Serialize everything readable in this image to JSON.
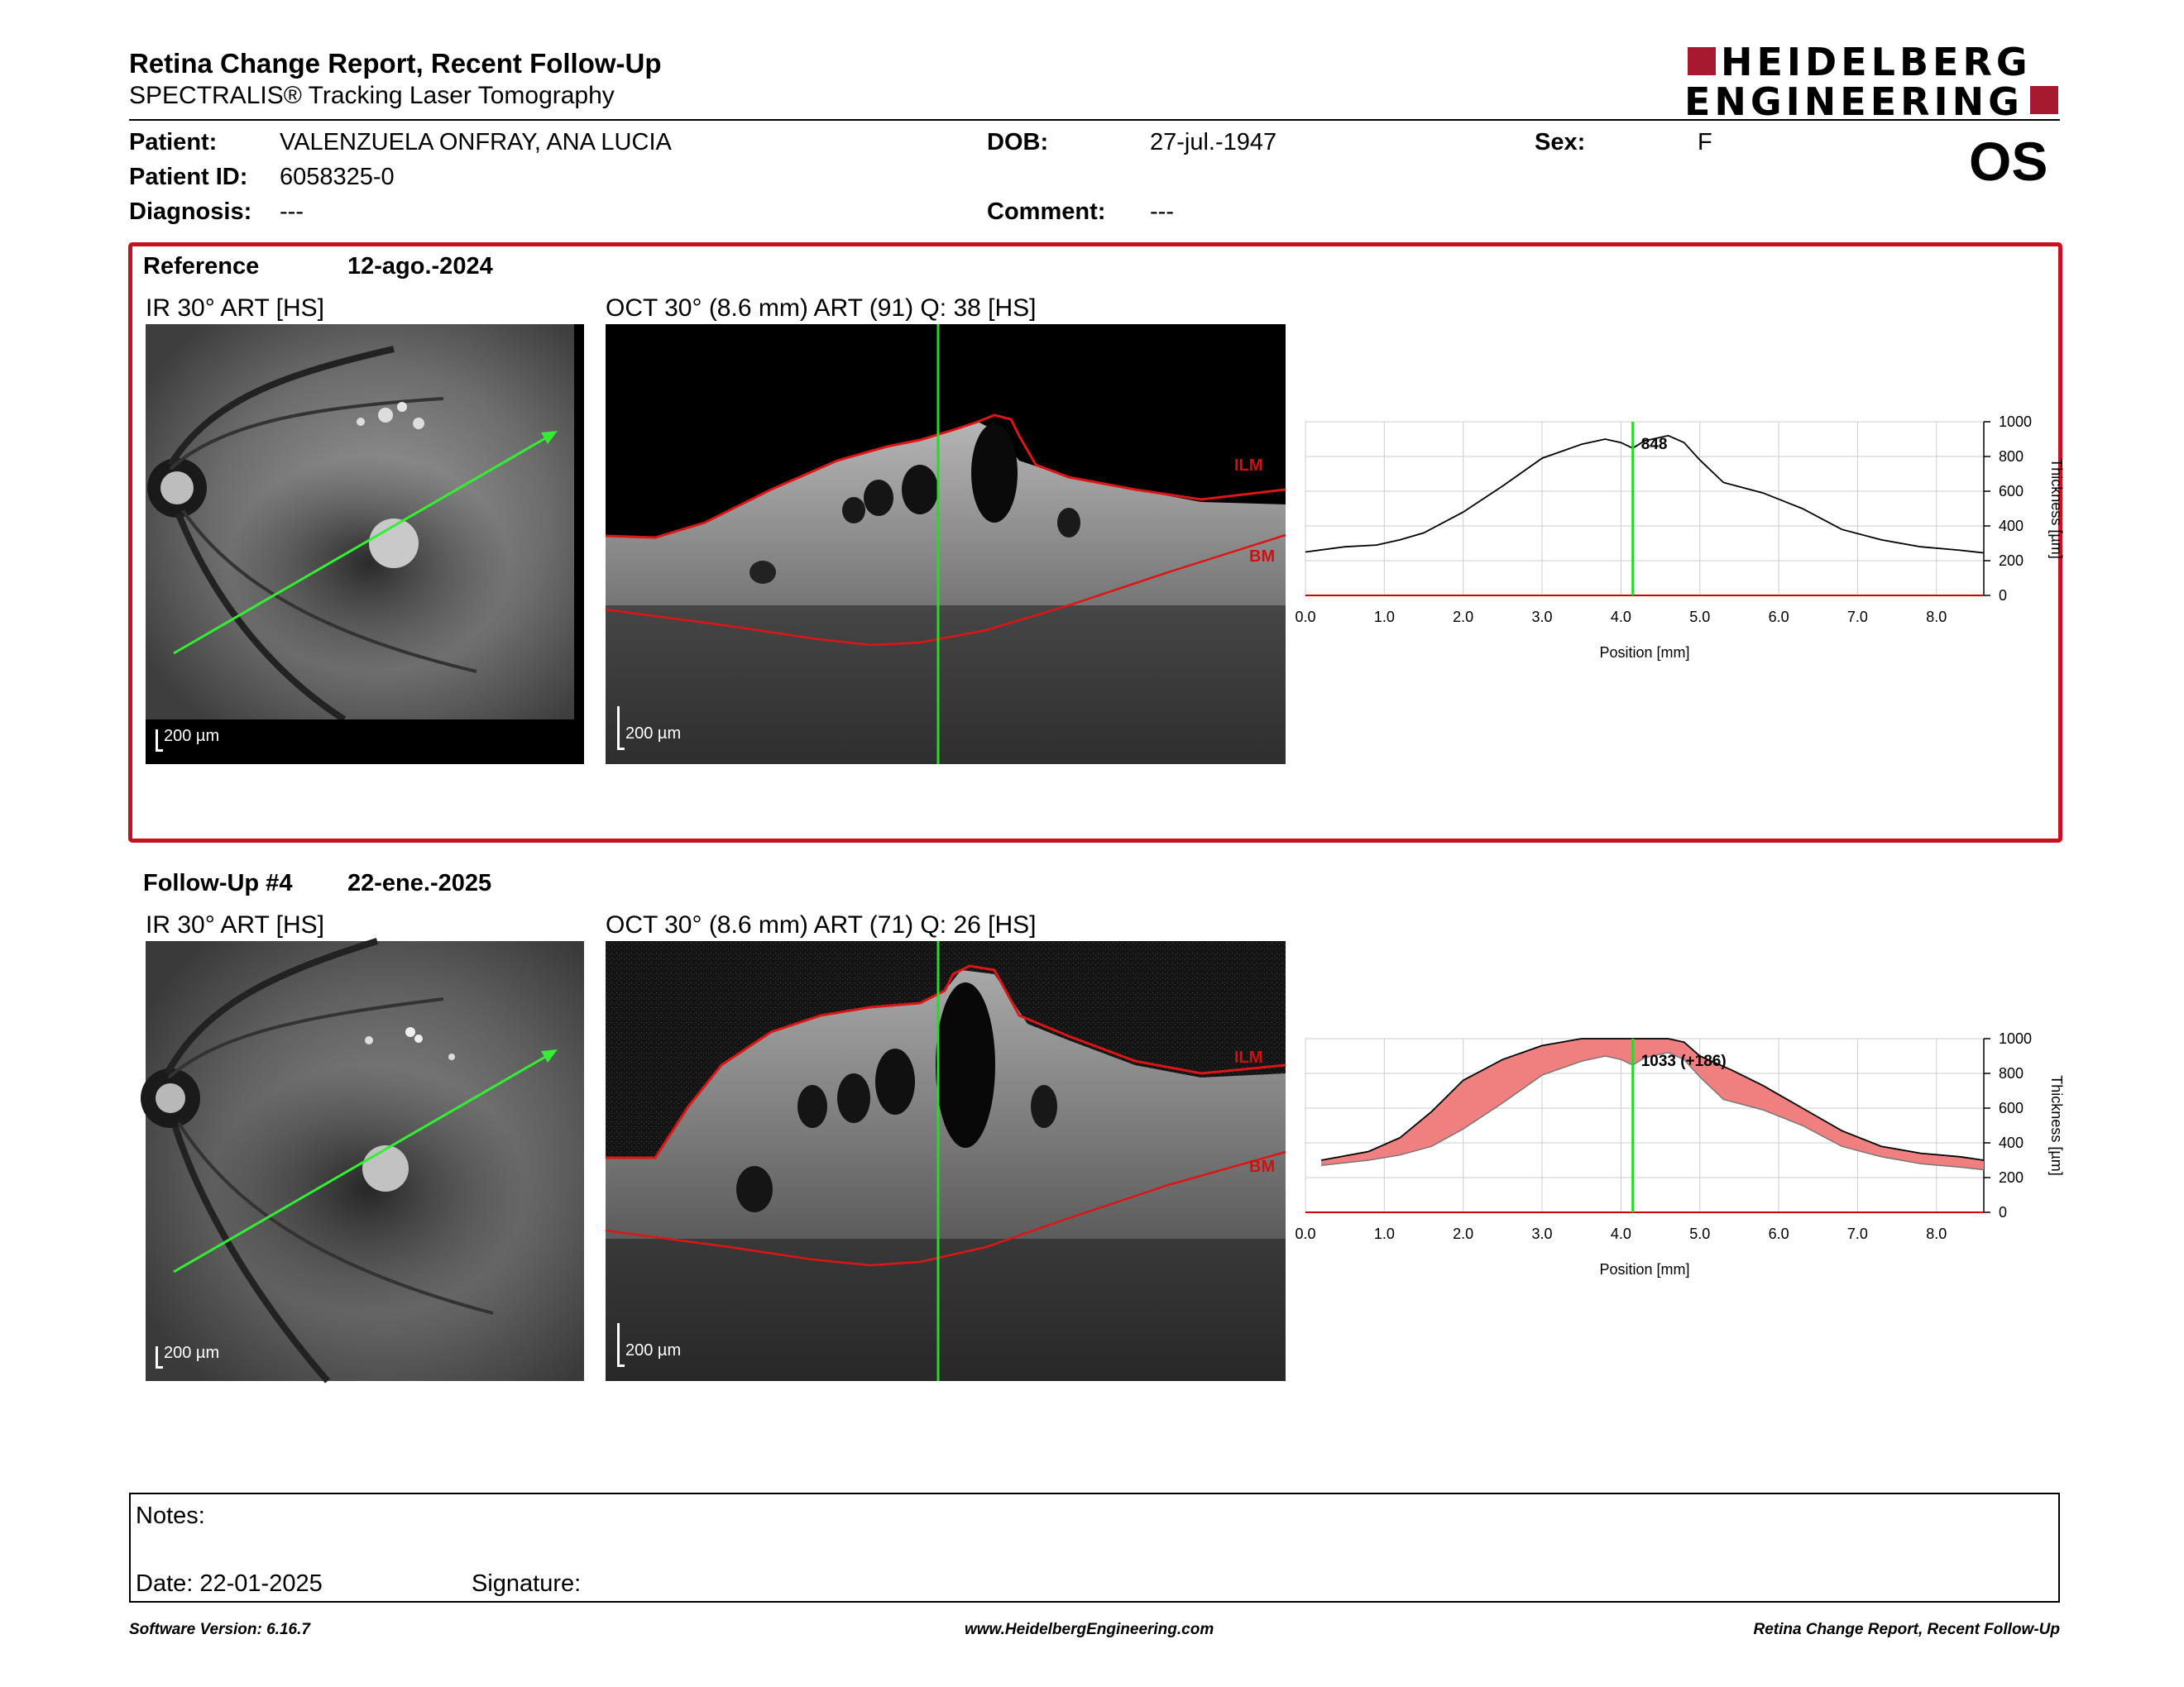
{
  "header": {
    "title": "Retina Change Report, Recent Follow-Up",
    "subtitle": "SPECTRALIS® Tracking Laser Tomography",
    "logo_line1": "HEIDELBERG",
    "logo_line2": "ENGINEERING",
    "eye": "OS"
  },
  "patient": {
    "name_label": "Patient:",
    "name": "VALENZUELA ONFRAY, ANA LUCIA",
    "id_label": "Patient ID:",
    "id": "6058325-0",
    "diagnosis_label": "Diagnosis:",
    "diagnosis": "---",
    "dob_label": "DOB:",
    "dob": "27-jul.-1947",
    "comment_label": "Comment:",
    "comment": "---",
    "sex_label": "Sex:",
    "sex": "F"
  },
  "reference": {
    "label": "Reference",
    "date": "12-ago.-2024",
    "ir_title": "IR 30° ART [HS]",
    "oct_title": "OCT 30° (8.6 mm) ART (91) Q: 38 [HS]",
    "scale_ir": "200 µm",
    "scale_oct": "200 µm",
    "ilm": "ILM",
    "bm": "BM"
  },
  "followup": {
    "label": "Follow-Up #4",
    "date": "22-ene.-2025",
    "ir_title": "IR 30° ART [HS]",
    "oct_title": "OCT 30° (8.6 mm) ART (71) Q: 26 [HS]",
    "scale_ir": "200 µm",
    "scale_oct": "200 µm",
    "ilm": "ILM",
    "bm": "BM"
  },
  "chart_data": [
    {
      "type": "line",
      "xlabel": "Position [mm]",
      "ylabel": "Thickness [µm]",
      "xlim": [
        0,
        8.6
      ],
      "ylim": [
        0,
        1000
      ],
      "x_ticks": [
        "0.0",
        "1.0",
        "2.0",
        "3.0",
        "4.0",
        "5.0",
        "6.0",
        "7.0",
        "8.0"
      ],
      "y_ticks": [
        "0",
        "200",
        "400",
        "600",
        "800",
        "1000"
      ],
      "grid": true,
      "cursor_x": 4.15,
      "cursor_label": "848",
      "series": [
        {
          "values_x": [
            0,
            0.5,
            0.9,
            1.2,
            1.5,
            2.0,
            2.5,
            3.0,
            3.5,
            3.8,
            4.0,
            4.15,
            4.3,
            4.6,
            4.8,
            5.0,
            5.3,
            5.8,
            6.3,
            6.8,
            7.3,
            7.8,
            8.3,
            8.6
          ],
          "values_y": [
            250,
            280,
            290,
            320,
            360,
            480,
            630,
            790,
            870,
            900,
            880,
            848,
            890,
            920,
            880,
            780,
            650,
            590,
            500,
            380,
            320,
            280,
            260,
            245
          ]
        }
      ]
    },
    {
      "type": "area",
      "xlabel": "Position [mm]",
      "ylabel": "Thickness [µm]",
      "xlim": [
        0,
        8.6
      ],
      "ylim": [
        0,
        1000
      ],
      "x_ticks": [
        "0.0",
        "1.0",
        "2.0",
        "3.0",
        "4.0",
        "5.0",
        "6.0",
        "7.0",
        "8.0"
      ],
      "y_ticks": [
        "0",
        "200",
        "400",
        "600",
        "800",
        "1000"
      ],
      "grid": true,
      "cursor_x": 4.15,
      "cursor_label": "1033 (+186)",
      "series": [
        {
          "values_x": [
            0.2,
            0.8,
            1.2,
            1.6,
            2.0,
            2.5,
            3.0,
            3.5,
            3.8,
            4.0,
            4.3,
            4.6,
            4.8,
            5.0,
            5.4,
            5.8,
            6.3,
            6.8,
            7.3,
            7.8,
            8.3,
            8.6
          ],
          "values_y": [
            300,
            350,
            430,
            580,
            760,
            880,
            960,
            1000,
            1000,
            1000,
            1000,
            1000,
            980,
            900,
            820,
            730,
            600,
            470,
            380,
            340,
            320,
            300
          ]
        },
        {
          "values_x": [
            0.2,
            0.8,
            1.2,
            1.6,
            2.0,
            2.5,
            3.0,
            3.5,
            3.8,
            4.0,
            4.15,
            4.3,
            4.6,
            4.8,
            5.0,
            5.3,
            5.8,
            6.3,
            6.8,
            7.3,
            7.8,
            8.3,
            8.6
          ],
          "values_y": [
            270,
            300,
            330,
            380,
            480,
            630,
            790,
            870,
            900,
            880,
            848,
            890,
            920,
            880,
            780,
            650,
            590,
            500,
            380,
            320,
            280,
            260,
            245
          ]
        }
      ],
      "fill_color": "#f08080"
    }
  ],
  "notes": {
    "notes_label": "Notes:",
    "date_label": "Date: 22-01-2025",
    "signature_label": "Signature:"
  },
  "footer": {
    "version": "Software Version: 6.16.7",
    "website": "www.HeidelbergEngineering.com",
    "report": "Retina Change Report, Recent Follow-Up"
  },
  "colors": {
    "accent": "#a6192e",
    "ref_border": "#c8101e",
    "cursor": "#22dd22",
    "arrow": "#33ee33",
    "ilm": "#d01010"
  }
}
